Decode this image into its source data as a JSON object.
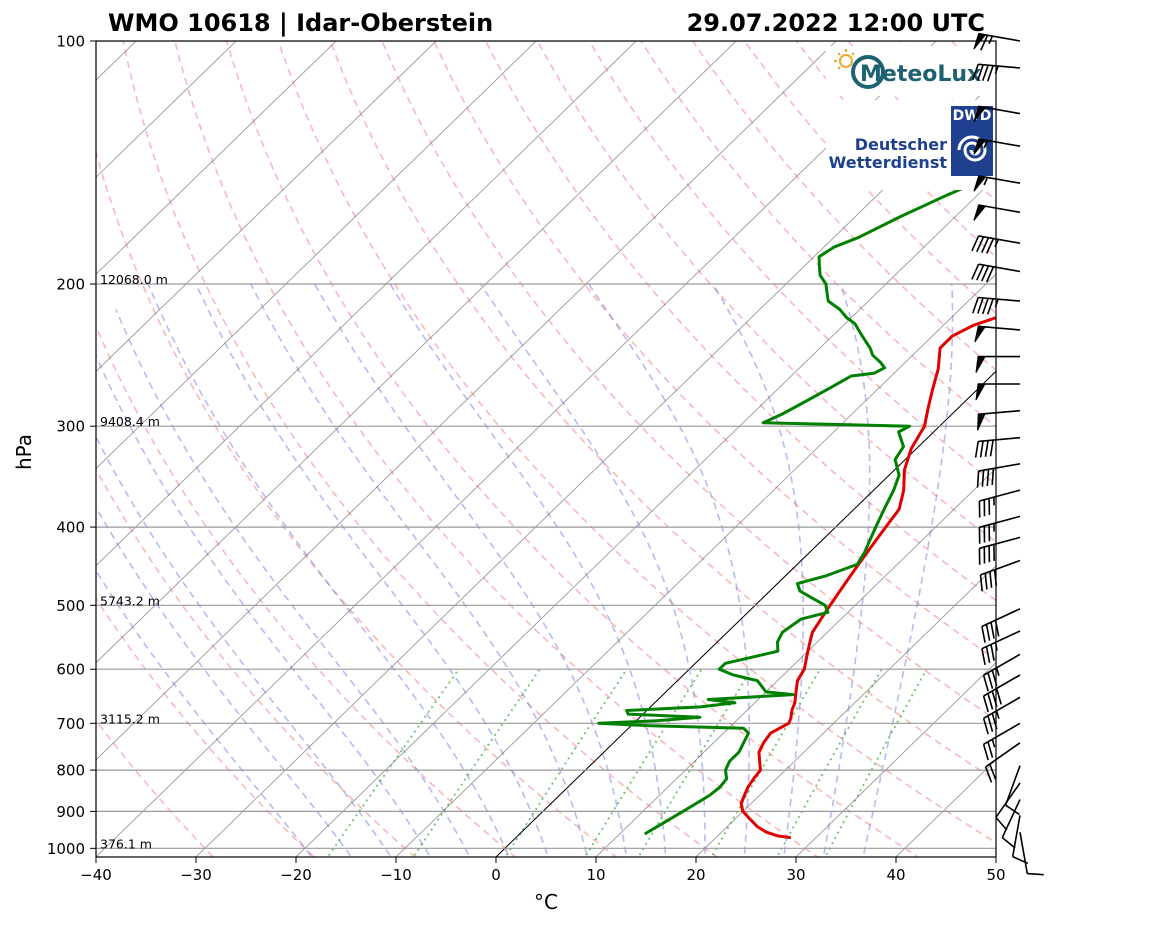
{
  "chart_data": {
    "type": "line",
    "title_left": "WMO 10618 | Idar-Oberstein",
    "title_right": "29.07.2022 12:00 UTC",
    "xlabel": "°C",
    "ylabel": "hPa",
    "xlim": [
      -40,
      50
    ],
    "ylim": [
      1025,
      100
    ],
    "y_scale": "log",
    "skew": "skew-T log-p",
    "grid": true,
    "x_ticks": [
      "−40",
      "−30",
      "−20",
      "−10",
      "0",
      "10",
      "20",
      "30",
      "40",
      "50"
    ],
    "y_ticks": [
      "100",
      "200",
      "300",
      "400",
      "500",
      "600",
      "700",
      "800",
      "900",
      "1000"
    ],
    "height_labels": [
      {
        "p": 200,
        "text": "12068.0 m"
      },
      {
        "p": 300,
        "text": "9408.4 m"
      },
      {
        "p": 500,
        "text": "5743.2 m"
      },
      {
        "p": 700,
        "text": "3115.2 m"
      },
      {
        "p": 1000,
        "text": "376.1 m"
      }
    ],
    "series": [
      {
        "color": "#e00000",
        "points": [
          [
            970,
            27.5
          ],
          [
            965,
            26
          ],
          [
            955,
            24.5
          ],
          [
            940,
            23
          ],
          [
            920,
            21.5
          ],
          [
            900,
            20
          ],
          [
            880,
            19
          ],
          [
            860,
            18.5
          ],
          [
            840,
            18
          ],
          [
            820,
            17.7
          ],
          [
            800,
            17.5
          ],
          [
            780,
            16.5
          ],
          [
            760,
            15.5
          ],
          [
            740,
            15
          ],
          [
            720,
            14.7
          ],
          [
            700,
            15.5
          ],
          [
            690,
            15.2
          ],
          [
            675,
            14.5
          ],
          [
            660,
            14
          ],
          [
            640,
            13
          ],
          [
            620,
            12
          ],
          [
            600,
            11.5
          ],
          [
            580,
            10.5
          ],
          [
            560,
            9.5
          ],
          [
            540,
            8.5
          ],
          [
            520,
            8
          ],
          [
            500,
            7.5
          ],
          [
            480,
            7
          ],
          [
            460,
            6.5
          ],
          [
            440,
            6
          ],
          [
            420,
            5.5
          ],
          [
            400,
            5
          ],
          [
            380,
            4.5
          ],
          [
            360,
            3
          ],
          [
            340,
            1
          ],
          [
            320,
            -0.5
          ],
          [
            300,
            -1.5
          ],
          [
            285,
            -3
          ],
          [
            270,
            -4.5
          ],
          [
            255,
            -6
          ],
          [
            240,
            -8
          ],
          [
            232,
            -8
          ],
          [
            225,
            -7
          ],
          [
            220,
            -5.5
          ],
          [
            215,
            -5
          ],
          [
            210,
            -3.5
          ],
          [
            205,
            -2.5
          ],
          [
            200,
            -2
          ],
          [
            195,
            -1
          ],
          [
            190,
            0
          ],
          [
            185,
            0.5
          ],
          [
            180,
            1
          ],
          [
            175,
            1.5
          ],
          [
            170,
            2
          ],
          [
            165,
            2.3
          ],
          [
            160,
            3
          ],
          [
            155,
            3
          ],
          [
            150,
            3.5
          ],
          [
            140,
            5
          ],
          [
            130,
            6
          ],
          [
            120,
            7
          ],
          [
            110,
            8.5
          ],
          [
            102,
            9.5
          ],
          [
            100,
            10
          ]
        ]
      },
      {
        "color": "#008000",
        "points": [
          [
            960,
            12.5
          ],
          [
            940,
            13
          ],
          [
            920,
            13.5
          ],
          [
            900,
            14
          ],
          [
            880,
            14.5
          ],
          [
            860,
            15
          ],
          [
            840,
            15.2
          ],
          [
            820,
            15
          ],
          [
            800,
            14
          ],
          [
            780,
            13.5
          ],
          [
            760,
            13.5
          ],
          [
            740,
            13
          ],
          [
            720,
            12.5
          ],
          [
            710,
            11.5
          ],
          [
            705,
            2
          ],
          [
            700,
            -3.5
          ],
          [
            695,
            2
          ],
          [
            688,
            6
          ],
          [
            682,
            -1.5
          ],
          [
            675,
            -2
          ],
          [
            668,
            5
          ],
          [
            660,
            8
          ],
          [
            654,
            5
          ],
          [
            645,
            13
          ],
          [
            640,
            10
          ],
          [
            630,
            9
          ],
          [
            620,
            8
          ],
          [
            610,
            5
          ],
          [
            600,
            3
          ],
          [
            590,
            3
          ],
          [
            580,
            5
          ],
          [
            570,
            7
          ],
          [
            555,
            6
          ],
          [
            540,
            5.5
          ],
          [
            520,
            6
          ],
          [
            510,
            8
          ],
          [
            500,
            7
          ],
          [
            490,
            5
          ],
          [
            480,
            3
          ],
          [
            470,
            2
          ],
          [
            460,
            4
          ],
          [
            445,
            6
          ],
          [
            430,
            5.5
          ],
          [
            420,
            5
          ],
          [
            400,
            4
          ],
          [
            380,
            3
          ],
          [
            360,
            2
          ],
          [
            345,
            1
          ],
          [
            330,
            -1
          ],
          [
            318,
            -1.5
          ],
          [
            305,
            -3.5
          ],
          [
            300,
            -3
          ],
          [
            297,
            -18
          ],
          [
            290,
            -17
          ],
          [
            280,
            -16
          ],
          [
            270,
            -15
          ],
          [
            260,
            -14
          ],
          [
            258,
            -12
          ],
          [
            254,
            -11.5
          ],
          [
            250,
            -12.5
          ],
          [
            245,
            -14
          ],
          [
            240,
            -15
          ],
          [
            232,
            -17
          ],
          [
            228,
            -18
          ],
          [
            224,
            -19
          ],
          [
            220,
            -20.5
          ],
          [
            215,
            -22
          ],
          [
            210,
            -24
          ],
          [
            205,
            -25
          ],
          [
            200,
            -26
          ],
          [
            195,
            -27.5
          ],
          [
            190,
            -28.5
          ],
          [
            185,
            -29.5
          ],
          [
            180,
            -29
          ],
          [
            175,
            -27.5
          ],
          [
            165,
            -25.5
          ],
          [
            155,
            -23
          ],
          [
            145,
            -20
          ],
          [
            140,
            -17
          ],
          [
            135,
            -15
          ],
          [
            130,
            -16.5
          ],
          [
            125,
            -18
          ],
          [
            120,
            -18.5
          ],
          [
            115,
            -18.5
          ],
          [
            110,
            -18.5
          ],
          [
            105,
            -18
          ],
          [
            100,
            -17
          ]
        ]
      }
    ],
    "wind_barbs": [
      {
        "p": 100,
        "dir": 280,
        "kt": 65
      },
      {
        "p": 108,
        "dir": 275,
        "kt": 45
      },
      {
        "p": 123,
        "dir": 280,
        "kt": 50
      },
      {
        "p": 135,
        "dir": 280,
        "kt": 55
      },
      {
        "p": 150,
        "dir": 280,
        "kt": 55
      },
      {
        "p": 163,
        "dir": 280,
        "kt": 50
      },
      {
        "p": 178,
        "dir": 280,
        "kt": 45
      },
      {
        "p": 193,
        "dir": 280,
        "kt": 40
      },
      {
        "p": 210,
        "dir": 275,
        "kt": 45
      },
      {
        "p": 228,
        "dir": 275,
        "kt": 50
      },
      {
        "p": 246,
        "dir": 270,
        "kt": 50
      },
      {
        "p": 266,
        "dir": 270,
        "kt": 50
      },
      {
        "p": 287,
        "dir": 265,
        "kt": 50
      },
      {
        "p": 310,
        "dir": 265,
        "kt": 40
      },
      {
        "p": 334,
        "dir": 260,
        "kt": 40
      },
      {
        "p": 360,
        "dir": 255,
        "kt": 35
      },
      {
        "p": 388,
        "dir": 255,
        "kt": 35
      },
      {
        "p": 412,
        "dir": 255,
        "kt": 40
      },
      {
        "p": 440,
        "dir": 250,
        "kt": 40
      },
      {
        "p": 505,
        "dir": 245,
        "kt": 40
      },
      {
        "p": 538,
        "dir": 245,
        "kt": 35
      },
      {
        "p": 575,
        "dir": 240,
        "kt": 35
      },
      {
        "p": 610,
        "dir": 240,
        "kt": 40
      },
      {
        "p": 650,
        "dir": 240,
        "kt": 35
      },
      {
        "p": 700,
        "dir": 240,
        "kt": 25
      },
      {
        "p": 740,
        "dir": 235,
        "kt": 20
      },
      {
        "p": 790,
        "dir": 200,
        "kt": 10
      },
      {
        "p": 830,
        "dir": 215,
        "kt": 10
      },
      {
        "p": 870,
        "dir": 205,
        "kt": 10
      },
      {
        "p": 910,
        "dir": 190,
        "kt": 10
      },
      {
        "p": 955,
        "dir": 170,
        "kt": 10
      }
    ]
  },
  "logos": {
    "meteolux": "MeteoLux",
    "dwd_badge": "DWD",
    "dwd_line1": "Deutscher",
    "dwd_line2": "Wetterdienst"
  }
}
